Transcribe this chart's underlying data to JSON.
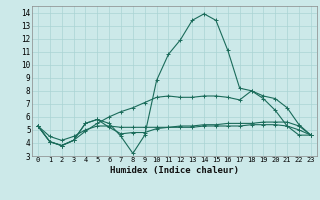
{
  "xlabel": "Humidex (Indice chaleur)",
  "bg_color": "#cce9e9",
  "grid_color": "#aad4d4",
  "line_color": "#1a6b5a",
  "xlim": [
    -0.5,
    23.5
  ],
  "ylim": [
    3,
    14.5
  ],
  "yticks": [
    3,
    4,
    5,
    6,
    7,
    8,
    9,
    10,
    11,
    12,
    13,
    14
  ],
  "xticks": [
    0,
    1,
    2,
    3,
    4,
    5,
    6,
    7,
    8,
    9,
    10,
    11,
    12,
    13,
    14,
    15,
    16,
    17,
    18,
    19,
    20,
    21,
    22,
    23
  ],
  "series": [
    [
      5.3,
      4.1,
      3.8,
      4.2,
      5.5,
      5.8,
      5.5,
      4.5,
      3.2,
      4.6,
      8.8,
      10.8,
      11.9,
      13.4,
      13.9,
      13.4,
      11.1,
      8.2,
      8.0,
      7.4,
      6.5,
      5.3,
      4.6,
      4.6
    ],
    [
      5.3,
      4.1,
      3.8,
      4.2,
      4.9,
      5.5,
      6.0,
      6.4,
      6.7,
      7.1,
      7.5,
      7.6,
      7.5,
      7.5,
      7.6,
      7.6,
      7.5,
      7.3,
      8.0,
      7.6,
      7.4,
      6.7,
      5.4,
      4.6
    ],
    [
      5.3,
      4.5,
      4.2,
      4.5,
      5.0,
      5.3,
      5.3,
      5.2,
      5.2,
      5.2,
      5.2,
      5.2,
      5.2,
      5.2,
      5.3,
      5.3,
      5.3,
      5.3,
      5.4,
      5.4,
      5.4,
      5.3,
      5.0,
      4.6
    ],
    [
      5.3,
      4.1,
      3.8,
      4.2,
      5.5,
      5.8,
      5.2,
      4.7,
      4.8,
      4.8,
      5.1,
      5.2,
      5.3,
      5.3,
      5.4,
      5.4,
      5.5,
      5.5,
      5.5,
      5.6,
      5.6,
      5.6,
      5.3,
      4.6
    ]
  ]
}
